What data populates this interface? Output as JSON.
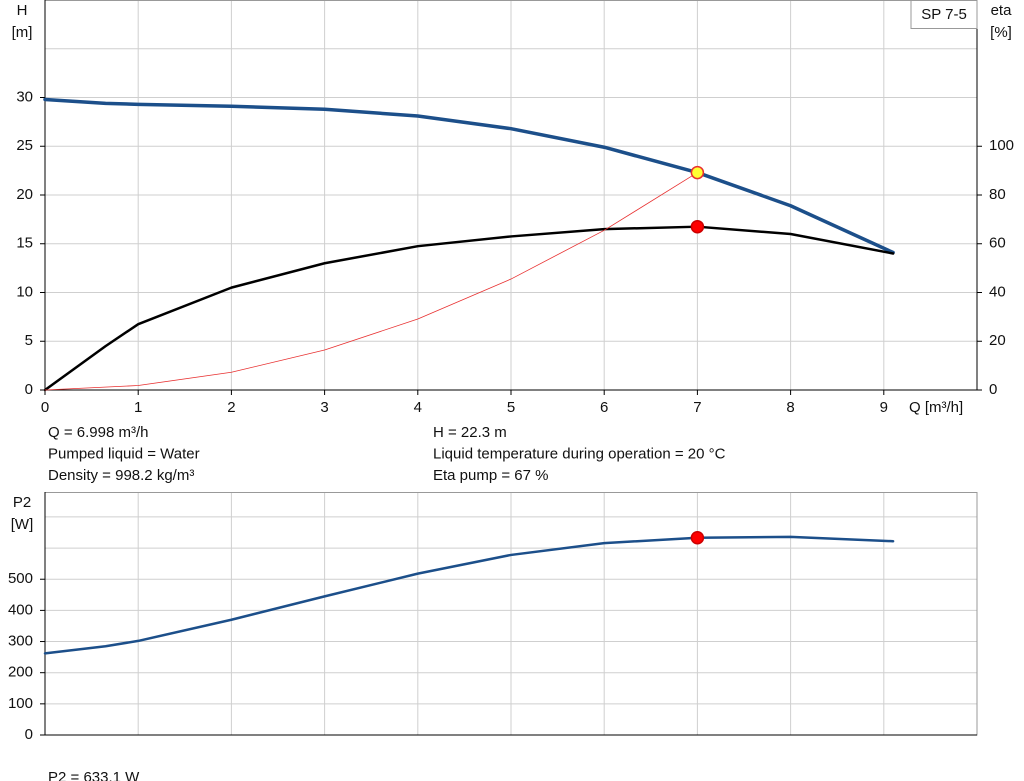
{
  "chart_data": [
    {
      "type": "line",
      "title": "SP 7-5",
      "xlabel": "Q [m³/h]",
      "ylabel": "H",
      "yunit": "[m]",
      "y2label": "eta",
      "y2unit": "[%]",
      "xlim": [
        0,
        10
      ],
      "xticks": [
        0,
        1,
        2,
        3,
        4,
        5,
        6,
        7,
        8,
        9
      ],
      "ylim": [
        0,
        40
      ],
      "yticks": [
        0,
        5,
        10,
        15,
        20,
        25,
        30
      ],
      "ygrid": [
        35
      ],
      "y2lim": [
        0,
        160
      ],
      "y2ticks": [
        0,
        20,
        40,
        60,
        80,
        100
      ],
      "grid": true,
      "series": [
        {
          "color": "#1c4f8a",
          "line_width": 3.5,
          "x": [
            0,
            0.65,
            1,
            2,
            3,
            4,
            5,
            6,
            7,
            8,
            9.1
          ],
          "values": [
            29.8,
            29.4,
            29.3,
            29.1,
            28.8,
            28.1,
            26.8,
            24.9,
            22.3,
            18.9,
            14.1
          ]
        },
        {
          "color": "#000000",
          "line_width": 2.5,
          "axis": "y2",
          "x": [
            0,
            0.65,
            1,
            2,
            3,
            4,
            5,
            6,
            7,
            8,
            9.1
          ],
          "values": [
            0,
            18,
            27,
            42,
            52,
            59,
            63,
            66,
            67,
            64,
            56
          ]
        },
        {
          "color": "#e83030",
          "line_width": 0.8,
          "x": [
            0,
            1,
            2,
            3,
            4,
            5,
            6,
            7
          ],
          "values": [
            0,
            0.46,
            1.82,
            4.1,
            7.28,
            11.38,
            16.38,
            22.3
          ]
        }
      ],
      "points": [
        {
          "x": 7,
          "y": 22.3,
          "color": "#ffff33",
          "edge": "#e83030"
        },
        {
          "x": 7,
          "y": 67,
          "axis": "y2",
          "color": "#ff0000",
          "edge": "#cc0000"
        }
      ],
      "annotations": [
        "Q = 6.998 m³/h",
        "Pumped liquid = Water",
        "Density = 998.2 kg/m³",
        "H = 22.3 m",
        "Liquid temperature during operation = 20 °C",
        "Eta pump = 67 %"
      ]
    },
    {
      "type": "line",
      "ylabel": "P2",
      "yunit": "[W]",
      "xlim": [
        0,
        10
      ],
      "xgrid": [
        1,
        2,
        3,
        4,
        5,
        6,
        7,
        8,
        9
      ],
      "ylim": [
        0,
        780
      ],
      "yticks": [
        0,
        100,
        200,
        300,
        400,
        500
      ],
      "ygrid": [
        600,
        700
      ],
      "grid": true,
      "series": [
        {
          "color": "#1c4f8a",
          "line_width": 2.5,
          "x": [
            0,
            0.65,
            1,
            2,
            3,
            4,
            5,
            6,
            7,
            8,
            9.1
          ],
          "values": [
            262,
            285,
            302,
            370,
            445,
            518,
            578,
            616,
            633.1,
            636,
            622
          ]
        }
      ],
      "points": [
        {
          "x": 7,
          "y": 633.1,
          "color": "#ff0000",
          "edge": "#cc0000"
        }
      ],
      "annotations": [
        "P2 = 633.1 W"
      ]
    }
  ]
}
